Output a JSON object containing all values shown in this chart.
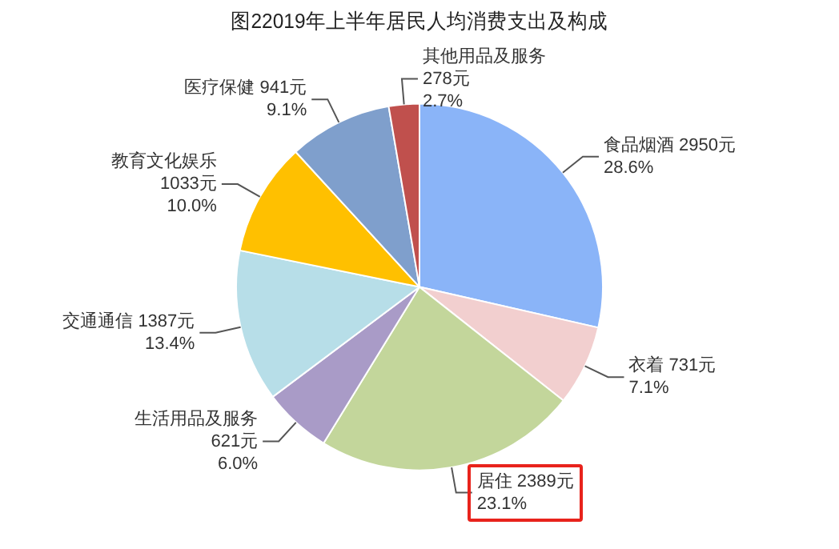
{
  "chart_data": {
    "type": "pie",
    "title": "图22019年上半年居民人均消费支出及构成",
    "categories": [
      "食品烟酒",
      "衣着",
      "居住",
      "生活用品及服务",
      "交通通信",
      "教育文化娱乐",
      "医疗保健",
      "其他用品及服务"
    ],
    "values": [
      2950,
      731,
      2389,
      621,
      1387,
      1033,
      941,
      278
    ],
    "colors": [
      "#8ab4f8",
      "#f2cfcf",
      "#c3d69b",
      "#a99bc7",
      "#b7dee8",
      "#ffc000",
      "#7f9fcc",
      "#c0504d"
    ],
    "value_labels": [
      "2950元\n28.6%",
      "731元\n7.1%",
      "2389元\n23.1%",
      "\n621元\n6.0%",
      "1387元\n13.4%",
      "\n1033元\n10.0%",
      "941元\n9.1%",
      "\n278元\n2.7%"
    ],
    "legend": false
  }
}
